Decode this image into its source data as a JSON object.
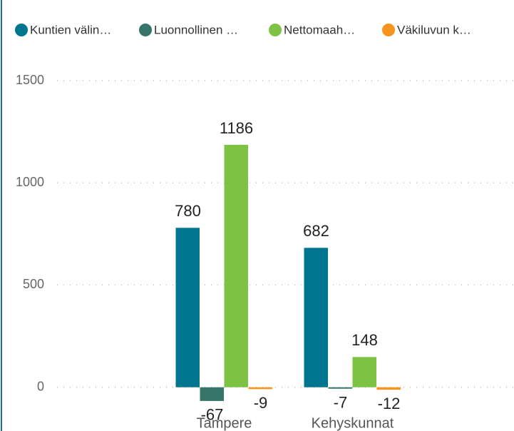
{
  "chart_data": {
    "type": "bar",
    "categories": [
      "Tampere",
      "Kehyskunnat"
    ],
    "series": [
      {
        "name": "Kuntien välin…",
        "color": "#00758f",
        "values": [
          780,
          682
        ]
      },
      {
        "name": "Luonnollinen …",
        "color": "#37756b",
        "values": [
          -67,
          -7
        ]
      },
      {
        "name": "Nettomaah…",
        "color": "#7dc242",
        "values": [
          1186,
          148
        ]
      },
      {
        "name": "Väkiluvun k…",
        "color": "#f7941d",
        "values": [
          -9,
          -12
        ]
      }
    ],
    "ylim": [
      -200,
      1500
    ],
    "yticks": [
      0,
      500,
      1000,
      1500
    ],
    "grid": true
  }
}
